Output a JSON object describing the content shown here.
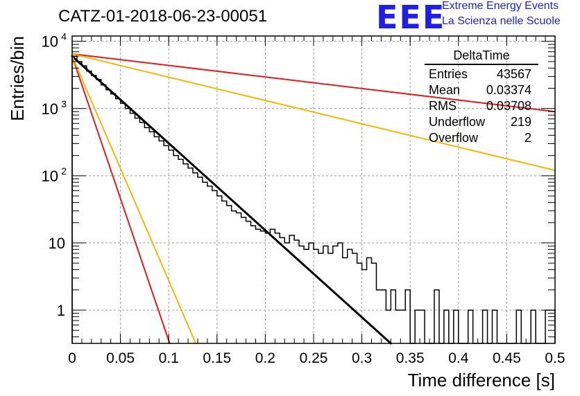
{
  "title": "CATZ-01-2018-06-23-00051",
  "logo": {
    "mark": "EEE",
    "line1": "Extreme Energy Events",
    "line2": "La Scienza nelle Scuole",
    "color": "#1e1ee6"
  },
  "stats": {
    "name": "DeltaTime",
    "rows": [
      {
        "label": "Entries",
        "value": "43567"
      },
      {
        "label": "Mean",
        "value": "0.03374"
      },
      {
        "label": "RMS",
        "value": "0.03708"
      },
      {
        "label": "Underflow",
        "value": "219"
      },
      {
        "label": "Overflow",
        "value": "2"
      }
    ]
  },
  "chart_data": {
    "type": "line",
    "xlabel": "Time difference [s]",
    "ylabel": "Entries/bin",
    "xlim": [
      0,
      0.5
    ],
    "ylim": [
      0.32,
      12000
    ],
    "yscale": "log",
    "grid": true,
    "x_ticks": [
      "0",
      "0.05",
      "0.1",
      "0.15",
      "0.2",
      "0.25",
      "0.3",
      "0.35",
      "0.4",
      "0.45",
      "0.5"
    ],
    "y_ticks": [
      {
        "value": 1,
        "label": "1"
      },
      {
        "value": 10,
        "label": "10"
      },
      {
        "value": 100,
        "label": "10",
        "sup": "2"
      },
      {
        "value": 1000,
        "label": "10",
        "sup": "3"
      },
      {
        "value": 10000,
        "label": "10",
        "sup": "4"
      }
    ],
    "histogram": {
      "bin_width": 0.005,
      "color": "#000000",
      "values": [
        6000,
        5000,
        4300,
        3600,
        3100,
        2700,
        2250,
        1900,
        1650,
        1400,
        1200,
        1000,
        850,
        720,
        620,
        520,
        450,
        380,
        330,
        280,
        240,
        200,
        175,
        150,
        130,
        110,
        95,
        80,
        70,
        60,
        50,
        42,
        36,
        30,
        28,
        24,
        21,
        18,
        16,
        15,
        14,
        16,
        14,
        12,
        10,
        13,
        11,
        9,
        8,
        10,
        8,
        7,
        9,
        7,
        9,
        10,
        6,
        8,
        7,
        5,
        4,
        6,
        5,
        2,
        2,
        1,
        2,
        1,
        1,
        2,
        0,
        1,
        1,
        0,
        0,
        2,
        0,
        1,
        0,
        1,
        0,
        0,
        1,
        0,
        0,
        1,
        0,
        1,
        0,
        0,
        0,
        0,
        1,
        0,
        0,
        1,
        0,
        0,
        1,
        1
      ]
    },
    "series": [
      {
        "type": "exp",
        "color": "#000000",
        "x": [
          0,
          0.33
        ],
        "y": [
          6000,
          0.32
        ]
      },
      {
        "type": "exp",
        "color": "#e31a1c",
        "x": [
          0,
          0.5
        ],
        "y": [
          6500,
          900
        ]
      },
      {
        "type": "exp",
        "color": "#f5b800",
        "x": [
          0,
          0.5
        ],
        "y": [
          6500,
          120
        ]
      },
      {
        "type": "exp",
        "color": "#e31a1c",
        "x": [
          0,
          0.101
        ],
        "y": [
          6000,
          0.32
        ]
      },
      {
        "type": "exp",
        "color": "#f5b800",
        "x": [
          0,
          0.128
        ],
        "y": [
          6000,
          0.32
        ]
      }
    ]
  }
}
